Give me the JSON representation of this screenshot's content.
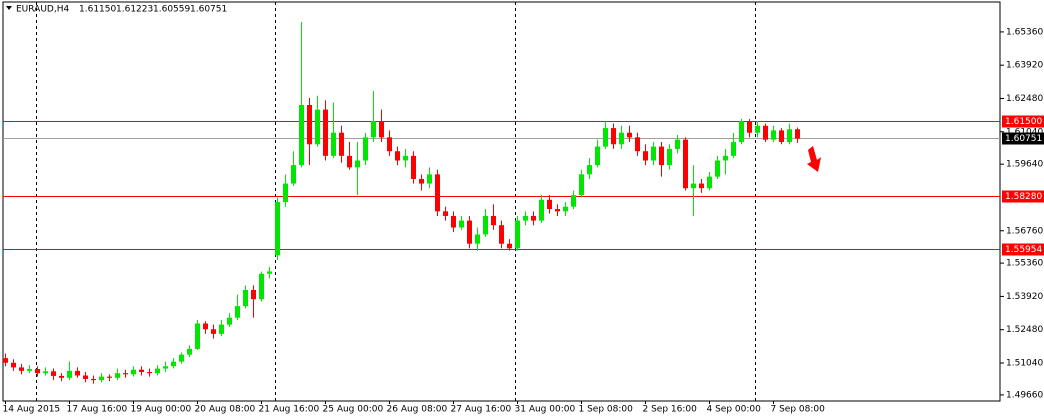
{
  "chart_data": {
    "type": "candlestick",
    "header": {
      "symbol": "EURAUD,H4",
      "open": "1.61150",
      "high": "1.61223",
      "low": "1.60559",
      "close": "1.60751"
    },
    "categories": [
      "14 Aug 2015",
      null,
      null,
      null,
      null,
      null,
      null,
      null,
      "17 Aug 16:00",
      null,
      null,
      null,
      null,
      null,
      null,
      null,
      "19 Aug 00:00",
      null,
      null,
      null,
      null,
      null,
      null,
      null,
      "20 Aug 08:00",
      null,
      null,
      null,
      null,
      null,
      null,
      null,
      "21 Aug 16:00",
      null,
      null,
      null,
      null,
      null,
      null,
      null,
      "25 Aug 00:00",
      null,
      null,
      null,
      null,
      null,
      null,
      null,
      "26 Aug 08:00",
      null,
      null,
      null,
      null,
      null,
      null,
      null,
      "27 Aug 16:00",
      null,
      null,
      null,
      null,
      null,
      null,
      null,
      "31 Aug 00:00",
      null,
      null,
      null,
      null,
      null,
      null,
      null,
      "1 Sep 08:00",
      null,
      null,
      null,
      null,
      null,
      null,
      null,
      "2 Sep 16:00",
      null,
      null,
      null,
      null,
      null,
      null,
      null,
      "4 Sep 00:00",
      null,
      null,
      null,
      null,
      null,
      null,
      null,
      "7 Sep 08:00",
      null,
      null,
      null
    ],
    "open": [
      1.5125,
      1.5105,
      1.5085,
      1.507,
      1.5078,
      1.506,
      1.5068,
      1.5048,
      1.504,
      1.507,
      1.505,
      1.5035,
      1.503,
      1.5045,
      1.504,
      1.506,
      1.5055,
      1.5075,
      1.5065,
      1.506,
      1.508,
      1.509,
      1.511,
      1.514,
      1.5165,
      1.5275,
      1.525,
      1.523,
      1.527,
      1.53,
      1.535,
      1.542,
      1.538,
      1.549,
      1.557,
      1.58,
      1.588,
      1.596,
      1.622,
      1.605,
      1.62,
      1.6,
      1.61,
      1.6,
      1.595,
      1.598,
      1.608,
      1.615,
      1.608,
      1.602,
      1.598,
      1.6,
      1.59,
      1.588,
      1.592,
      1.576,
      1.574,
      1.569,
      1.572,
      1.562,
      1.566,
      1.574,
      1.57,
      1.562,
      1.56,
      1.572,
      1.574,
      1.572,
      1.581,
      1.577,
      1.576,
      1.578,
      1.583,
      1.592,
      1.596,
      1.604,
      1.612,
      1.605,
      1.61,
      1.608,
      1.602,
      1.598,
      1.604,
      1.596,
      1.603,
      1.607,
      1.586,
      1.588,
      1.586,
      1.591,
      1.598,
      1.6,
      1.606,
      1.615,
      1.61,
      1.613,
      1.607,
      1.611,
      1.606,
      1.6115
    ],
    "high": [
      1.5145,
      1.512,
      1.51,
      1.5095,
      1.509,
      1.5085,
      1.508,
      1.506,
      1.511,
      1.5085,
      1.5065,
      1.505,
      1.506,
      1.5055,
      1.508,
      1.5075,
      1.509,
      1.509,
      1.508,
      1.5095,
      1.511,
      1.5125,
      1.515,
      1.518,
      1.529,
      1.5285,
      1.527,
      1.529,
      1.532,
      1.54,
      1.544,
      1.544,
      1.55,
      1.552,
      1.582,
      1.592,
      1.602,
      1.6579,
      1.625,
      1.626,
      1.624,
      1.623,
      1.613,
      1.606,
      1.606,
      1.61,
      1.628,
      1.62,
      1.611,
      1.604,
      1.603,
      1.602,
      1.592,
      1.595,
      1.594,
      1.578,
      1.576,
      1.574,
      1.574,
      1.569,
      1.577,
      1.579,
      1.572,
      1.564,
      1.574,
      1.576,
      1.576,
      1.583,
      1.583,
      1.579,
      1.58,
      1.585,
      1.594,
      1.599,
      1.607,
      1.615,
      1.614,
      1.613,
      1.613,
      1.61,
      1.605,
      1.606,
      1.606,
      1.605,
      1.609,
      1.608,
      1.596,
      1.59,
      1.593,
      1.6,
      1.603,
      1.61,
      1.616,
      1.616,
      1.615,
      1.614,
      1.613,
      1.612,
      1.614,
      1.61223
    ],
    "low": [
      1.509,
      1.507,
      1.5055,
      1.506,
      1.5045,
      1.505,
      1.503,
      1.5025,
      1.503,
      1.504,
      1.502,
      1.5015,
      1.502,
      1.5025,
      1.503,
      1.504,
      1.5045,
      1.505,
      1.5045,
      1.505,
      1.5065,
      1.508,
      1.51,
      1.513,
      1.516,
      1.523,
      1.521,
      1.522,
      1.526,
      1.529,
      1.534,
      1.53,
      1.537,
      1.547,
      1.555,
      1.578,
      1.587,
      1.595,
      1.596,
      1.604,
      1.598,
      1.599,
      1.597,
      1.594,
      1.583,
      1.596,
      1.606,
      1.606,
      1.6,
      1.596,
      1.595,
      1.588,
      1.585,
      1.586,
      1.574,
      1.572,
      1.567,
      1.568,
      1.56,
      1.559,
      1.565,
      1.568,
      1.56,
      1.559,
      1.559,
      1.57,
      1.57,
      1.571,
      1.575,
      1.574,
      1.574,
      1.577,
      1.582,
      1.59,
      1.595,
      1.603,
      1.603,
      1.603,
      1.606,
      1.6,
      1.596,
      1.596,
      1.591,
      1.594,
      1.601,
      1.585,
      1.574,
      1.584,
      1.585,
      1.59,
      1.592,
      1.599,
      1.605,
      1.608,
      1.608,
      1.606,
      1.606,
      1.605,
      1.605,
      1.60559
    ],
    "close": [
      1.5105,
      1.5085,
      1.507,
      1.5078,
      1.506,
      1.5068,
      1.5048,
      1.504,
      1.507,
      1.505,
      1.5035,
      1.503,
      1.5045,
      1.504,
      1.506,
      1.5055,
      1.5075,
      1.5065,
      1.506,
      1.508,
      1.509,
      1.511,
      1.514,
      1.5165,
      1.5275,
      1.525,
      1.523,
      1.527,
      1.53,
      1.535,
      1.542,
      1.538,
      1.549,
      1.55,
      1.58,
      1.588,
      1.596,
      1.622,
      1.605,
      1.62,
      1.6,
      1.61,
      1.6,
      1.595,
      1.598,
      1.608,
      1.615,
      1.608,
      1.602,
      1.598,
      1.6,
      1.59,
      1.588,
      1.592,
      1.576,
      1.574,
      1.569,
      1.572,
      1.562,
      1.566,
      1.574,
      1.57,
      1.562,
      1.56,
      1.572,
      1.574,
      1.572,
      1.581,
      1.577,
      1.576,
      1.578,
      1.583,
      1.592,
      1.596,
      1.604,
      1.612,
      1.605,
      1.61,
      1.608,
      1.602,
      1.598,
      1.604,
      1.596,
      1.603,
      1.607,
      1.586,
      1.588,
      1.586,
      1.591,
      1.598,
      1.6,
      1.606,
      1.615,
      1.61,
      1.613,
      1.607,
      1.611,
      1.606,
      1.6115,
      1.60751
    ],
    "up_color": "#00e600",
    "down_color": "#ff0000",
    "ylim": [
      1.4944,
      1.6674
    ],
    "yticks": [
      {
        "value": 1.6536,
        "label": "1.65360"
      },
      {
        "value": 1.6392,
        "label": "1.63920"
      },
      {
        "value": 1.6248,
        "label": "1.62480"
      },
      {
        "value": 1.6104,
        "label": "1.61040"
      },
      {
        "value": 1.5964,
        "label": "1.59640"
      },
      {
        "value": 1.5676,
        "label": "1.56760"
      },
      {
        "value": 1.5536,
        "label": "1.55360"
      },
      {
        "value": 1.5392,
        "label": "1.53920"
      },
      {
        "value": 1.5248,
        "label": "1.52480"
      },
      {
        "value": 1.5104,
        "label": "1.51040"
      },
      {
        "value": 1.4966,
        "label": "1.49660"
      }
    ],
    "levels": [
      {
        "value": 1.615,
        "label": "1.61500"
      },
      {
        "value": 1.5828,
        "label": "1.58280"
      },
      {
        "value": 1.55954,
        "label": "1.55954"
      }
    ],
    "level_color": "#ff0000",
    "current_price": {
      "value": 1.60751,
      "label": "1.60751"
    }
  }
}
